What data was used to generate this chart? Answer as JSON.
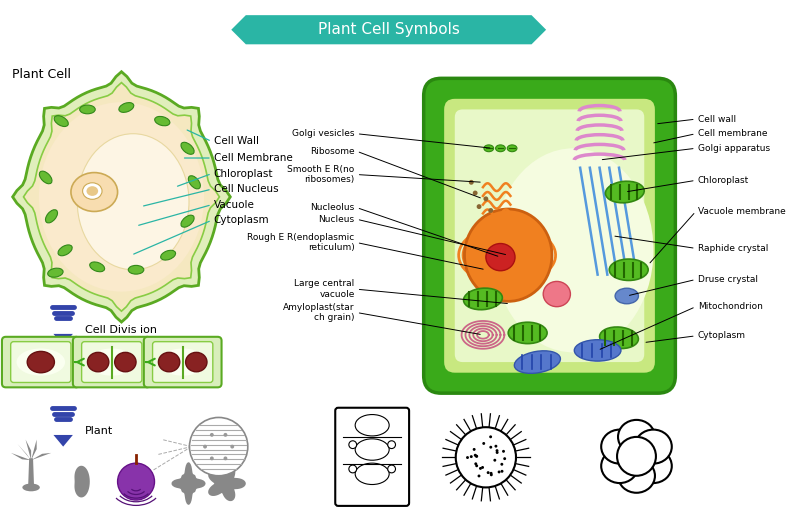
{
  "title": "Plant Cell Symbols",
  "bg_color": "#ffffff",
  "teal": "#2ab5a5",
  "left_label": "Plant Cell",
  "left_cell_labels": [
    "Cell Wall",
    "Cell Membrane",
    "Chloroplast",
    "Cell Nucleus",
    "Vacuole",
    "Cytoplasm"
  ],
  "cell_division_label": "Cell Divis ion",
  "plant_label": "Plant",
  "right_left_labels": [
    [
      "Golgi vesicles",
      363,
      132
    ],
    [
      "Ribosome",
      363,
      152
    ],
    [
      "Smooth E R(no\nribosomes)",
      363,
      172
    ],
    [
      "Nucleolus",
      363,
      206
    ],
    [
      "Nucleus",
      363,
      220
    ],
    [
      "Rough E R(endoplasmic\nreticulum)",
      363,
      242
    ],
    [
      "Large central\nvacuole",
      363,
      288
    ],
    [
      "Amyloplast(star\nch grain)",
      363,
      312
    ]
  ],
  "right_right_labels": [
    [
      "Cell wall",
      718,
      118
    ],
    [
      "Cell membrane",
      718,
      132
    ],
    [
      "Golgi apparatus",
      718,
      146
    ],
    [
      "Chloroplast",
      718,
      180
    ],
    [
      "Vacuole membrane",
      718,
      210
    ],
    [
      "Raphide crystal",
      718,
      248
    ],
    [
      "Druse crystal",
      718,
      280
    ],
    [
      "Mitochondrion",
      718,
      308
    ],
    [
      "Cytoplasm",
      718,
      338
    ]
  ],
  "green_outer": "#3aaa1a",
  "green_inner": "#88cc44",
  "green_fill": "#d4eea0",
  "green_light": "#eef8d0",
  "orange_nuc": "#f08020",
  "red_nucl": "#cc2222",
  "blue_mito": "#4466cc",
  "pink_golgi": "#cc88bb",
  "pink_amylo": "#cc6688",
  "teal_line": "#2ab5a5",
  "gray_sil": "#888888"
}
